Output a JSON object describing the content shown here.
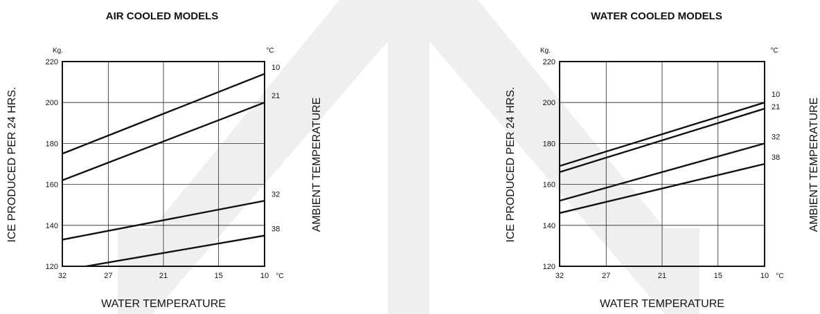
{
  "chart_data": [
    {
      "type": "line",
      "title": "AIR COOLED MODELS",
      "xlabel": "WATER TEMPERATURE",
      "ylabel": "ICE PRODUCED PER 24 HRS.",
      "y2label": "AMBIENT TEMPERATURE",
      "y_unit": "Kg.",
      "y2_unit": "°C",
      "x_unit": "°C",
      "x_ticks": [
        "32",
        "27",
        "21",
        "15",
        "10"
      ],
      "y_ticks": [
        120,
        140,
        160,
        180,
        200,
        220
      ],
      "ylim": [
        120,
        220
      ],
      "grid": true,
      "series": [
        {
          "name": "10",
          "x": [
            32,
            10
          ],
          "y": [
            175,
            214
          ]
        },
        {
          "name": "21",
          "x": [
            32,
            10
          ],
          "y": [
            162,
            200
          ]
        },
        {
          "name": "32",
          "x": [
            32,
            10
          ],
          "y": [
            133,
            152
          ]
        },
        {
          "name": "38",
          "x": [
            32,
            10
          ],
          "y": [
            118,
            135
          ]
        }
      ]
    },
    {
      "type": "line",
      "title": "WATER COOLED MODELS",
      "xlabel": "WATER TEMPERATURE",
      "ylabel": "ICE PRODUCED PER 24 HRS.",
      "y2label": "AMBIENT TEMPERATURE",
      "y_unit": "Kg.",
      "y2_unit": "°C",
      "x_unit": "°C",
      "x_ticks": [
        "32",
        "27",
        "21",
        "15",
        "10"
      ],
      "y_ticks": [
        120,
        140,
        160,
        180,
        200,
        220
      ],
      "ylim": [
        120,
        220
      ],
      "grid": true,
      "series": [
        {
          "name": "10",
          "x": [
            32,
            10
          ],
          "y": [
            169,
            200
          ]
        },
        {
          "name": "21",
          "x": [
            32,
            10
          ],
          "y": [
            166,
            197
          ]
        },
        {
          "name": "32",
          "x": [
            32,
            10
          ],
          "y": [
            152,
            180
          ]
        },
        {
          "name": "38",
          "x": [
            32,
            10
          ],
          "y": [
            146,
            170
          ]
        }
      ]
    }
  ]
}
